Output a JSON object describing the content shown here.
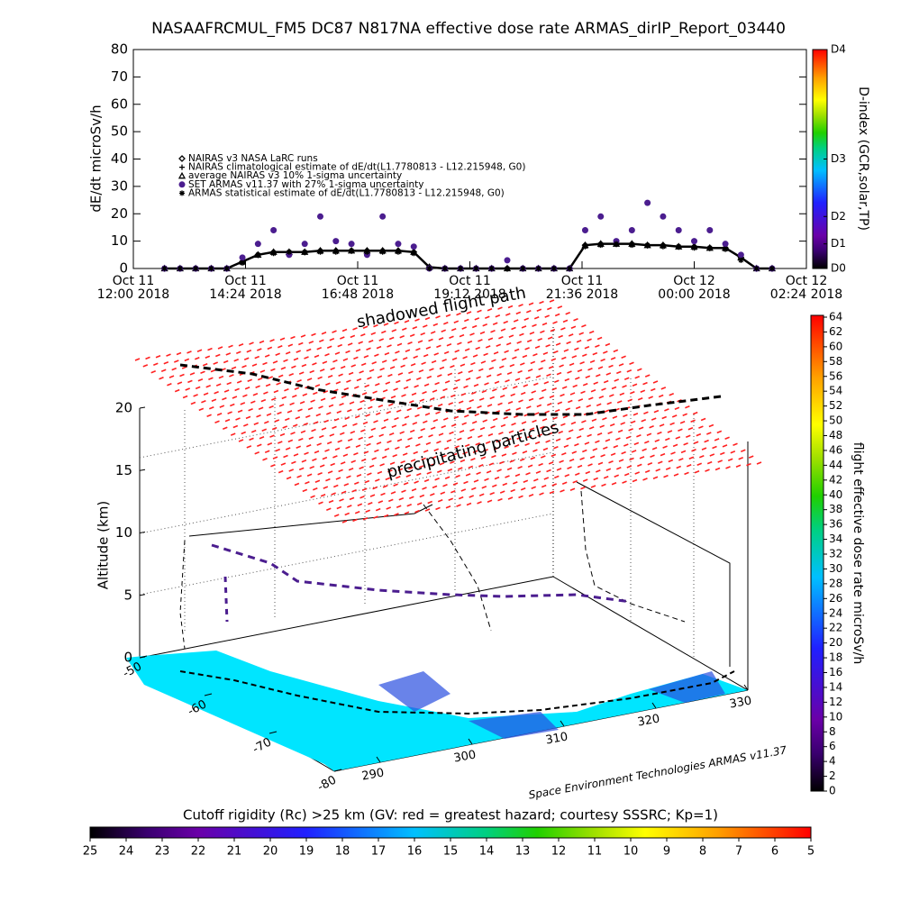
{
  "chart_data": [
    {
      "type": "scatter",
      "title": "NASAAFRCMUL_FM5 DC87 N817NA effective dose rate ARMAS_dirIP_Report_03440",
      "ylabel": "dE/dt microSv/h",
      "ylim": [
        0,
        80
      ],
      "yticks": [
        0,
        10,
        20,
        30,
        40,
        50,
        60,
        70,
        80
      ],
      "y2label": "D-index (GCR,solar,TP)",
      "y2lim": [
        0,
        80
      ],
      "y2ticks": [
        {
          "value": 0,
          "label": "D0"
        },
        {
          "value": 9,
          "label": "D1"
        },
        {
          "value": 19,
          "label": "D2"
        },
        {
          "value": 40,
          "label": "D3"
        },
        {
          "value": 80,
          "label": "D4"
        }
      ],
      "xlim": [
        "2018-10-11 12:00",
        "2018-10-12 02:24"
      ],
      "xticks": [
        {
          "value": "2018-10-11 12:00",
          "label": "Oct 11\n12:00 2018"
        },
        {
          "value": "2018-10-11 14:24",
          "label": "Oct 11\n14:24 2018"
        },
        {
          "value": "2018-10-11 16:48",
          "label": "Oct 11\n16:48 2018"
        },
        {
          "value": "2018-10-11 19:12",
          "label": "Oct 11\n19:12 2018"
        },
        {
          "value": "2018-10-11 21:36",
          "label": "Oct 11\n21:36 2018"
        },
        {
          "value": "2018-10-12 00:00",
          "label": "Oct 12\n00:00 2018"
        },
        {
          "value": "2018-10-12 02:24",
          "label": "Oct 12\n02:24 2018"
        }
      ],
      "x": [
        "2018-10-11 12:40",
        "2018-10-11 13:00",
        "2018-10-11 13:20",
        "2018-10-11 13:40",
        "2018-10-11 14:00",
        "2018-10-11 14:20",
        "2018-10-11 14:40",
        "2018-10-11 15:00",
        "2018-10-11 15:20",
        "2018-10-11 15:40",
        "2018-10-11 16:00",
        "2018-10-11 16:20",
        "2018-10-11 16:40",
        "2018-10-11 17:00",
        "2018-10-11 17:20",
        "2018-10-11 17:40",
        "2018-10-11 18:00",
        "2018-10-11 18:20",
        "2018-10-11 18:40",
        "2018-10-11 19:00",
        "2018-10-11 19:20",
        "2018-10-11 19:40",
        "2018-10-11 20:00",
        "2018-10-11 20:20",
        "2018-10-11 20:40",
        "2018-10-11 21:00",
        "2018-10-11 21:20",
        "2018-10-11 21:40",
        "2018-10-11 22:00",
        "2018-10-11 22:20",
        "2018-10-11 22:40",
        "2018-10-11 23:00",
        "2018-10-11 23:20",
        "2018-10-11 23:40",
        "2018-10-12 00:00",
        "2018-10-12 00:20",
        "2018-10-12 00:40",
        "2018-10-12 01:00",
        "2018-10-12 01:20",
        "2018-10-12 01:40"
      ],
      "series": [
        {
          "name": "NAIRAS v3 NASA LaRC runs",
          "marker": "diamond",
          "color": "#000000",
          "values": [
            0,
            0,
            0,
            0,
            0,
            2.5,
            5,
            6,
            6,
            6,
            6.5,
            6.5,
            6.5,
            6.5,
            6.5,
            6.5,
            6,
            0.5,
            0,
            0,
            0,
            0,
            0,
            0,
            0,
            0,
            0,
            8.5,
            9,
            9,
            9,
            8.5,
            8.5,
            8,
            8,
            7.5,
            7.5,
            4,
            0,
            0
          ]
        },
        {
          "name": "NAIRAS climatological estimate of dE/dt(L1.7780813 - L12.215948, G0)",
          "marker": "plus",
          "line": true,
          "color": "#000000",
          "values": [
            0,
            0,
            0,
            0,
            0,
            2.5,
            5,
            6,
            6,
            6,
            6.5,
            6.5,
            6.5,
            6.5,
            6.5,
            6.5,
            6,
            0.5,
            0,
            0,
            0,
            0,
            0,
            0,
            0,
            0,
            0,
            8.5,
            9,
            9,
            9,
            8.5,
            8.5,
            8,
            8,
            7.5,
            7.5,
            4,
            0,
            0
          ]
        },
        {
          "name": "average NAIRAS v3 10% 1-sigma uncertainty",
          "marker": "triangle",
          "color": "#000000",
          "values": [
            0,
            0,
            0,
            0,
            0,
            2.5,
            5,
            6,
            6,
            6,
            6.5,
            6.5,
            6.5,
            6.5,
            6.5,
            6.5,
            6,
            0.5,
            0,
            0,
            0,
            0,
            0,
            0,
            0,
            0,
            0,
            8.5,
            9,
            9,
            9,
            8.5,
            8.5,
            8,
            8,
            7.5,
            7.5,
            4,
            0,
            0
          ]
        },
        {
          "name": "SET ARMAS v11.37 with 27% 1-sigma uncertainty",
          "marker": "circle",
          "color": "#4b1d8f",
          "values": [
            0,
            0,
            0,
            0,
            0,
            4,
            9,
            14,
            5,
            9,
            19,
            10,
            9,
            5,
            19,
            9,
            8,
            0,
            0,
            0,
            0,
            0,
            3,
            0,
            0,
            0,
            0,
            14,
            19,
            10,
            14,
            24,
            19,
            14,
            10,
            14,
            9,
            5,
            0,
            0
          ]
        },
        {
          "name": "ARMAS statistical estimate of dE/dt(L1.7780813 - L12.215948, G0)",
          "marker": "asterisk",
          "color": "#000000",
          "values": [
            0,
            0,
            0,
            0,
            0,
            2,
            5,
            5.5,
            6,
            6,
            6,
            6,
            6.5,
            6,
            6,
            6,
            5.5,
            0,
            0,
            0,
            0,
            0,
            0,
            0,
            0,
            0,
            0,
            8,
            8.5,
            9,
            8.5,
            8.5,
            8,
            8,
            7.5,
            7.5,
            7,
            3,
            0,
            0
          ]
        }
      ]
    },
    {
      "type": "scatter3d",
      "annotations": [
        "shadowed flight path",
        "precipitating particles"
      ],
      "zlabel": "Altitude (km)",
      "zticks": [
        0,
        5,
        10,
        15,
        20
      ],
      "xticks": [
        290,
        300,
        310,
        320,
        330
      ],
      "yticks": [
        -50,
        -60,
        -70,
        -80
      ],
      "credit": "Space Environment Technologies ARMAS v11.37",
      "colorbar": {
        "label": "flight effective dose rate microSv/h",
        "lim": [
          0,
          64
        ],
        "ticks": [
          0,
          2,
          4,
          6,
          8,
          10,
          12,
          14,
          16,
          18,
          20,
          22,
          24,
          26,
          28,
          30,
          32,
          34,
          36,
          38,
          40,
          42,
          44,
          46,
          48,
          50,
          52,
          54,
          56,
          58,
          60,
          62,
          64
        ]
      },
      "rigidity_colorbar": {
        "label": "Cutoff rigidity (Rc) >25 km (GV: red = greatest hazard; courtesy SSSRC; Kp=1)",
        "lim": [
          25,
          5
        ],
        "ticks": [
          25,
          24,
          23,
          22,
          21,
          20,
          19,
          18,
          17,
          16,
          15,
          14,
          13,
          12,
          11,
          10,
          9,
          8,
          7,
          6,
          5
        ]
      }
    }
  ]
}
